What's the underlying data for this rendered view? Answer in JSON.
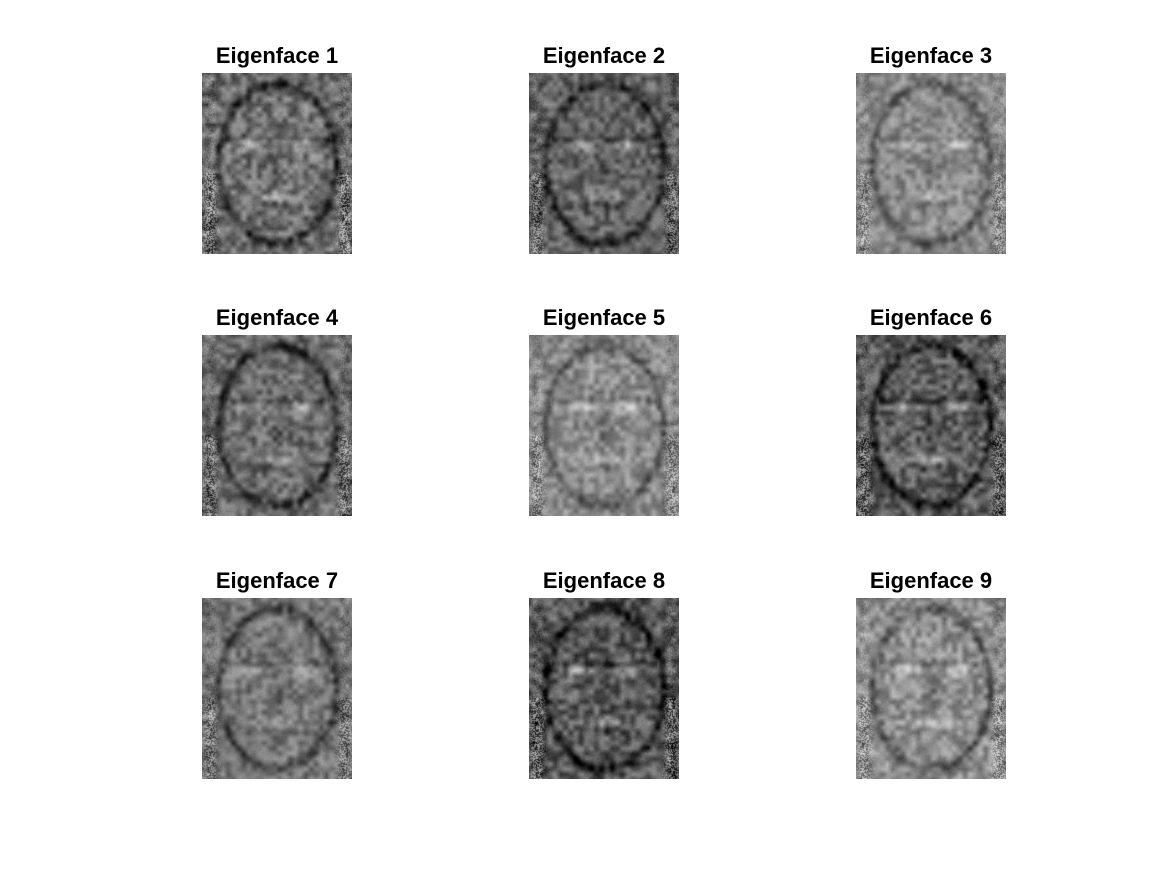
{
  "figure": {
    "panels": [
      {
        "title": "Eigenface 1",
        "tone": "#6f6f6f",
        "contrast": 1.15,
        "seed": 11
      },
      {
        "title": "Eigenface 2",
        "tone": "#646464",
        "contrast": 1.0,
        "seed": 23
      },
      {
        "title": "Eigenface 3",
        "tone": "#8a8a8a",
        "contrast": 0.85,
        "seed": 37
      },
      {
        "title": "Eigenface 4",
        "tone": "#6c6c6c",
        "contrast": 1.0,
        "seed": 41
      },
      {
        "title": "Eigenface 5",
        "tone": "#8c8c8c",
        "contrast": 0.9,
        "seed": 53
      },
      {
        "title": "Eigenface 6",
        "tone": "#5f5f5f",
        "contrast": 1.1,
        "seed": 67
      },
      {
        "title": "Eigenface 7",
        "tone": "#767676",
        "contrast": 0.9,
        "seed": 71
      },
      {
        "title": "Eigenface 8",
        "tone": "#5a5a5a",
        "contrast": 1.15,
        "seed": 83
      },
      {
        "title": "Eigenface 9",
        "tone": "#8e8e8e",
        "contrast": 0.95,
        "seed": 97
      }
    ]
  }
}
